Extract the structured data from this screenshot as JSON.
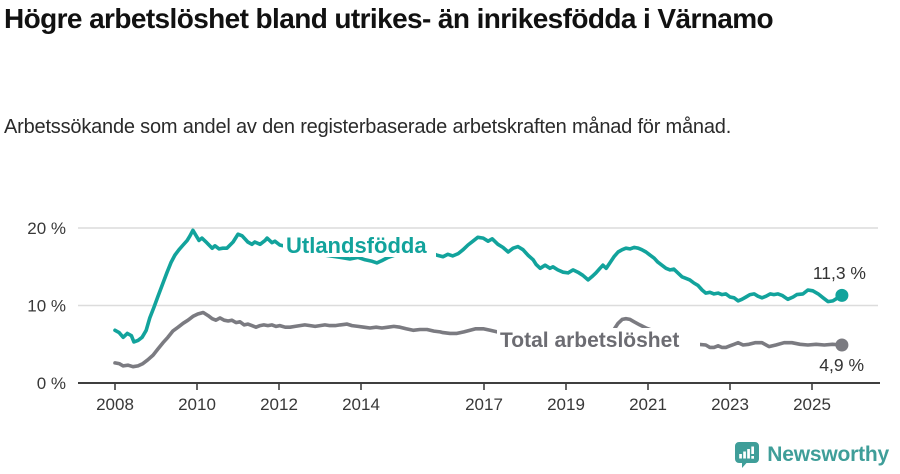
{
  "header": {
    "title": "Högre arbetslöshet bland utrikes- än inrikesfödda i Värnamo",
    "subtitle": "Arbetssökande som andel av den registerbaserade arbetskraften månad för månad."
  },
  "colors": {
    "accent_teal": "#12a39c",
    "series_gray": "#7b7b81",
    "gray_label": "#6c6c72",
    "axis": "#3f3f3f",
    "grid": "#dcdcdc",
    "tick_text": "#383838",
    "value_text": "#333333",
    "brand": "#3f9e99"
  },
  "chart_data": {
    "type": "line",
    "title": "Högre arbetslöshet bland utrikes- än inrikesfödda i Värnamo",
    "subtitle": "Arbetssökande som andel av den registerbaserade arbetskraften månad för månad.",
    "unit": "%",
    "xlim": [
      2008,
      2025.75
    ],
    "ylim": [
      0,
      21
    ],
    "grid": true,
    "legend_position": "inline-labels",
    "x_ticks": [
      {
        "year": 2008,
        "label": "2008"
      },
      {
        "year": 2010,
        "label": "2010"
      },
      {
        "year": 2012,
        "label": "2012"
      },
      {
        "year": 2014,
        "label": "2014"
      },
      {
        "year": 2017,
        "label": "2017"
      },
      {
        "year": 2019,
        "label": "2019"
      },
      {
        "year": 2021,
        "label": "2021"
      },
      {
        "year": 2023,
        "label": "2023"
      },
      {
        "year": 2025,
        "label": "2025"
      }
    ],
    "y_ticks": [
      {
        "value": 0,
        "label": "0 %"
      },
      {
        "value": 10,
        "label": "10 %"
      },
      {
        "value": 20,
        "label": "20 %"
      }
    ],
    "grid_values": [
      10,
      20
    ],
    "series": [
      {
        "name": "Utlandsfödda",
        "color": "#12a39c",
        "label_color": "#12a39c",
        "end_label": "11,3 %",
        "end_value": 11.3,
        "points": [
          [
            2008.0,
            6.8
          ],
          [
            2008.1,
            6.5
          ],
          [
            2008.2,
            5.9
          ],
          [
            2008.3,
            6.4
          ],
          [
            2008.4,
            6.1
          ],
          [
            2008.46,
            5.3
          ],
          [
            2008.56,
            5.5
          ],
          [
            2008.66,
            5.9
          ],
          [
            2008.76,
            6.8
          ],
          [
            2008.85,
            8.4
          ],
          [
            2008.95,
            9.8
          ],
          [
            2009.05,
            11.2
          ],
          [
            2009.17,
            12.9
          ],
          [
            2009.27,
            14.3
          ],
          [
            2009.37,
            15.6
          ],
          [
            2009.46,
            16.5
          ],
          [
            2009.56,
            17.2
          ],
          [
            2009.66,
            17.8
          ],
          [
            2009.76,
            18.4
          ],
          [
            2009.83,
            19.0
          ],
          [
            2009.9,
            19.7
          ],
          [
            2009.98,
            19.0
          ],
          [
            2010.05,
            18.4
          ],
          [
            2010.12,
            18.7
          ],
          [
            2010.24,
            18.1
          ],
          [
            2010.37,
            17.4
          ],
          [
            2010.44,
            17.7
          ],
          [
            2010.54,
            17.3
          ],
          [
            2010.63,
            17.4
          ],
          [
            2010.73,
            17.4
          ],
          [
            2010.88,
            18.2
          ],
          [
            2011.0,
            19.2
          ],
          [
            2011.1,
            19.0
          ],
          [
            2011.24,
            18.2
          ],
          [
            2011.34,
            17.9
          ],
          [
            2011.41,
            18.2
          ],
          [
            2011.54,
            17.9
          ],
          [
            2011.66,
            18.4
          ],
          [
            2011.71,
            18.7
          ],
          [
            2011.83,
            18.1
          ],
          [
            2011.9,
            18.3
          ],
          [
            2012.02,
            17.8
          ],
          [
            2012.27,
            17.5
          ],
          [
            2012.51,
            17.2
          ],
          [
            2012.76,
            16.9
          ],
          [
            2013.0,
            16.6
          ],
          [
            2013.24,
            16.4
          ],
          [
            2013.49,
            16.2
          ],
          [
            2013.73,
            16.0
          ],
          [
            2013.93,
            16.2
          ],
          [
            2014.1,
            15.9
          ],
          [
            2014.27,
            15.7
          ],
          [
            2014.39,
            15.5
          ],
          [
            2014.51,
            15.8
          ],
          [
            2014.66,
            16.2
          ],
          [
            2014.83,
            16.5
          ],
          [
            2015.0,
            16.7
          ],
          [
            2015.2,
            16.6
          ],
          [
            2015.39,
            16.8
          ],
          [
            2015.54,
            16.7
          ],
          [
            2015.68,
            16.9
          ],
          [
            2015.85,
            16.5
          ],
          [
            2016.0,
            16.3
          ],
          [
            2016.12,
            16.6
          ],
          [
            2016.24,
            16.4
          ],
          [
            2016.37,
            16.7
          ],
          [
            2016.49,
            17.2
          ],
          [
            2016.61,
            17.8
          ],
          [
            2016.73,
            18.3
          ],
          [
            2016.85,
            18.8
          ],
          [
            2016.98,
            18.7
          ],
          [
            2017.1,
            18.3
          ],
          [
            2017.2,
            18.6
          ],
          [
            2017.34,
            17.9
          ],
          [
            2017.46,
            17.5
          ],
          [
            2017.59,
            16.9
          ],
          [
            2017.71,
            17.4
          ],
          [
            2017.83,
            17.6
          ],
          [
            2017.95,
            17.2
          ],
          [
            2018.07,
            16.5
          ],
          [
            2018.2,
            15.9
          ],
          [
            2018.27,
            15.3
          ],
          [
            2018.37,
            14.8
          ],
          [
            2018.49,
            15.2
          ],
          [
            2018.61,
            14.8
          ],
          [
            2018.68,
            15.0
          ],
          [
            2018.8,
            14.6
          ],
          [
            2018.93,
            14.3
          ],
          [
            2019.05,
            14.2
          ],
          [
            2019.17,
            14.6
          ],
          [
            2019.29,
            14.3
          ],
          [
            2019.41,
            13.9
          ],
          [
            2019.54,
            13.3
          ],
          [
            2019.63,
            13.7
          ],
          [
            2019.73,
            14.2
          ],
          [
            2019.83,
            14.8
          ],
          [
            2019.9,
            15.2
          ],
          [
            2019.98,
            14.8
          ],
          [
            2020.07,
            15.5
          ],
          [
            2020.17,
            16.3
          ],
          [
            2020.27,
            16.9
          ],
          [
            2020.37,
            17.2
          ],
          [
            2020.46,
            17.4
          ],
          [
            2020.56,
            17.3
          ],
          [
            2020.66,
            17.5
          ],
          [
            2020.76,
            17.4
          ],
          [
            2020.85,
            17.2
          ],
          [
            2020.95,
            16.9
          ],
          [
            2021.05,
            16.5
          ],
          [
            2021.15,
            16.1
          ],
          [
            2021.24,
            15.6
          ],
          [
            2021.34,
            15.2
          ],
          [
            2021.44,
            14.8
          ],
          [
            2021.54,
            14.6
          ],
          [
            2021.63,
            14.7
          ],
          [
            2021.73,
            14.2
          ],
          [
            2021.83,
            13.7
          ],
          [
            2021.93,
            13.5
          ],
          [
            2022.02,
            13.3
          ],
          [
            2022.12,
            12.9
          ],
          [
            2022.22,
            12.6
          ],
          [
            2022.32,
            12.0
          ],
          [
            2022.41,
            11.6
          ],
          [
            2022.51,
            11.7
          ],
          [
            2022.61,
            11.5
          ],
          [
            2022.71,
            11.6
          ],
          [
            2022.8,
            11.4
          ],
          [
            2022.9,
            11.5
          ],
          [
            2023.0,
            11.1
          ],
          [
            2023.1,
            11.0
          ],
          [
            2023.2,
            10.6
          ],
          [
            2023.29,
            10.8
          ],
          [
            2023.39,
            11.1
          ],
          [
            2023.49,
            11.4
          ],
          [
            2023.59,
            11.5
          ],
          [
            2023.68,
            11.2
          ],
          [
            2023.78,
            11.0
          ],
          [
            2023.88,
            11.2
          ],
          [
            2023.98,
            11.5
          ],
          [
            2024.07,
            11.4
          ],
          [
            2024.17,
            11.5
          ],
          [
            2024.27,
            11.3
          ],
          [
            2024.41,
            10.8
          ],
          [
            2024.54,
            11.1
          ],
          [
            2024.63,
            11.4
          ],
          [
            2024.78,
            11.5
          ],
          [
            2024.9,
            12.0
          ],
          [
            2025.02,
            11.9
          ],
          [
            2025.15,
            11.5
          ],
          [
            2025.27,
            11.0
          ],
          [
            2025.39,
            10.5
          ],
          [
            2025.51,
            10.6
          ],
          [
            2025.63,
            11.0
          ],
          [
            2025.73,
            11.3
          ]
        ]
      },
      {
        "name": "Total arbetslöshet",
        "color": "#7b7b81",
        "label_color": "#6c6c72",
        "end_label": "4,9 %",
        "end_value": 4.9,
        "points": [
          [
            2008.0,
            2.6
          ],
          [
            2008.1,
            2.5
          ],
          [
            2008.2,
            2.2
          ],
          [
            2008.32,
            2.3
          ],
          [
            2008.44,
            2.1
          ],
          [
            2008.56,
            2.2
          ],
          [
            2008.68,
            2.5
          ],
          [
            2008.8,
            3.0
          ],
          [
            2008.93,
            3.6
          ],
          [
            2009.05,
            4.4
          ],
          [
            2009.17,
            5.2
          ],
          [
            2009.29,
            5.9
          ],
          [
            2009.41,
            6.7
          ],
          [
            2009.54,
            7.2
          ],
          [
            2009.66,
            7.7
          ],
          [
            2009.78,
            8.1
          ],
          [
            2009.9,
            8.6
          ],
          [
            2010.02,
            8.9
          ],
          [
            2010.15,
            9.1
          ],
          [
            2010.27,
            8.7
          ],
          [
            2010.37,
            8.3
          ],
          [
            2010.46,
            8.1
          ],
          [
            2010.56,
            8.4
          ],
          [
            2010.66,
            8.1
          ],
          [
            2010.76,
            8.0
          ],
          [
            2010.85,
            8.1
          ],
          [
            2010.95,
            7.8
          ],
          [
            2011.05,
            7.9
          ],
          [
            2011.15,
            7.5
          ],
          [
            2011.24,
            7.6
          ],
          [
            2011.34,
            7.4
          ],
          [
            2011.44,
            7.2
          ],
          [
            2011.54,
            7.4
          ],
          [
            2011.63,
            7.5
          ],
          [
            2011.73,
            7.4
          ],
          [
            2011.83,
            7.5
          ],
          [
            2011.93,
            7.3
          ],
          [
            2012.02,
            7.4
          ],
          [
            2012.15,
            7.2
          ],
          [
            2012.27,
            7.2
          ],
          [
            2012.39,
            7.3
          ],
          [
            2012.51,
            7.4
          ],
          [
            2012.63,
            7.5
          ],
          [
            2012.76,
            7.4
          ],
          [
            2012.88,
            7.3
          ],
          [
            2013.0,
            7.4
          ],
          [
            2013.12,
            7.5
          ],
          [
            2013.24,
            7.4
          ],
          [
            2013.37,
            7.4
          ],
          [
            2013.49,
            7.5
          ],
          [
            2013.66,
            7.6
          ],
          [
            2013.78,
            7.4
          ],
          [
            2013.93,
            7.3
          ],
          [
            2014.07,
            7.2
          ],
          [
            2014.22,
            7.1
          ],
          [
            2014.37,
            7.2
          ],
          [
            2014.51,
            7.1
          ],
          [
            2014.66,
            7.2
          ],
          [
            2014.8,
            7.3
          ],
          [
            2014.95,
            7.2
          ],
          [
            2015.1,
            7.0
          ],
          [
            2015.27,
            6.8
          ],
          [
            2015.44,
            6.9
          ],
          [
            2015.61,
            6.9
          ],
          [
            2015.78,
            6.7
          ],
          [
            2015.93,
            6.6
          ],
          [
            2016.0,
            6.5
          ],
          [
            2016.17,
            6.4
          ],
          [
            2016.34,
            6.4
          ],
          [
            2016.51,
            6.6
          ],
          [
            2016.66,
            6.8
          ],
          [
            2016.8,
            7.0
          ],
          [
            2016.98,
            7.0
          ],
          [
            2017.15,
            6.8
          ],
          [
            2017.32,
            6.6
          ],
          [
            2017.51,
            6.4
          ],
          [
            2017.76,
            6.3
          ],
          [
            2018.0,
            6.2
          ],
          [
            2018.24,
            6.1
          ],
          [
            2018.49,
            6.0
          ],
          [
            2018.73,
            5.9
          ],
          [
            2018.98,
            5.8
          ],
          [
            2019.22,
            5.7
          ],
          [
            2019.46,
            5.6
          ],
          [
            2019.71,
            5.6
          ],
          [
            2019.9,
            5.7
          ],
          [
            2020.07,
            6.2
          ],
          [
            2020.17,
            6.9
          ],
          [
            2020.27,
            7.7
          ],
          [
            2020.37,
            8.2
          ],
          [
            2020.46,
            8.3
          ],
          [
            2020.56,
            8.2
          ],
          [
            2020.66,
            7.9
          ],
          [
            2020.8,
            7.5
          ],
          [
            2020.95,
            7.1
          ],
          [
            2021.1,
            6.8
          ],
          [
            2021.24,
            6.5
          ],
          [
            2021.44,
            6.2
          ],
          [
            2021.63,
            5.9
          ],
          [
            2021.83,
            5.6
          ],
          [
            2022.02,
            5.3
          ],
          [
            2022.22,
            5.0
          ],
          [
            2022.41,
            4.9
          ],
          [
            2022.51,
            4.6
          ],
          [
            2022.61,
            4.6
          ],
          [
            2022.71,
            4.8
          ],
          [
            2022.8,
            4.6
          ],
          [
            2022.9,
            4.6
          ],
          [
            2023.0,
            4.8
          ],
          [
            2023.1,
            5.0
          ],
          [
            2023.2,
            5.2
          ],
          [
            2023.32,
            4.9
          ],
          [
            2023.46,
            5.0
          ],
          [
            2023.61,
            5.2
          ],
          [
            2023.78,
            5.2
          ],
          [
            2023.95,
            4.7
          ],
          [
            2024.12,
            4.9
          ],
          [
            2024.32,
            5.2
          ],
          [
            2024.51,
            5.2
          ],
          [
            2024.71,
            5.0
          ],
          [
            2024.9,
            4.9
          ],
          [
            2025.1,
            5.0
          ],
          [
            2025.3,
            4.9
          ],
          [
            2025.5,
            5.0
          ],
          [
            2025.73,
            4.9
          ]
        ]
      }
    ]
  },
  "footer": {
    "brand": "Newsworthy"
  }
}
